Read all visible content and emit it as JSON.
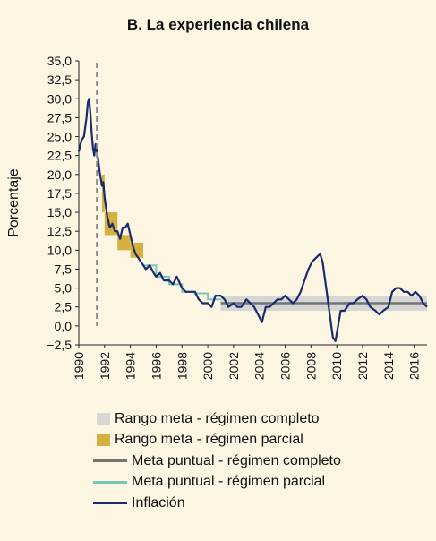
{
  "chart_data": {
    "type": "line",
    "title": "B. La experiencia chilena",
    "ylabel": "Porcentaje",
    "xlabel": "",
    "ylim": [
      -2.5,
      35
    ],
    "xlim": [
      1990,
      2017
    ],
    "y_ticks": [
      "35,0",
      "32,5",
      "30,0",
      "27,5",
      "25,0",
      "22,5",
      "20,0",
      "17,5",
      "15,0",
      "12,5",
      "10,0",
      "7,5",
      "5,0",
      "2,5",
      "0,0",
      "−2,5"
    ],
    "x_ticks": [
      "1990",
      "1992",
      "1994",
      "1996",
      "1998",
      "2000",
      "2002",
      "2004",
      "2006",
      "2008",
      "2010",
      "2012",
      "2014",
      "2016"
    ],
    "marker_line_year": 1991.4,
    "colors": {
      "band_full": "#d6d6d4",
      "band_partial": "#d4b13e",
      "point_full": "#737373",
      "point_partial": "#74c8b8",
      "inflation": "#1a2a6c",
      "marker_line": "#8a8a8a"
    },
    "legend": [
      {
        "label": "Rango meta - régimen completo",
        "kind": "box",
        "color": "#d6d6d4"
      },
      {
        "label": "Rango meta - régimen parcial",
        "kind": "box",
        "color": "#d4b13e"
      },
      {
        "label": "Meta puntual - régimen completo",
        "kind": "line",
        "color": "#737373"
      },
      {
        "label": "Meta puntual - régimen parcial",
        "kind": "line",
        "color": "#74c8b8"
      },
      {
        "label": "Inflación",
        "kind": "line",
        "color": "#1a2a6c"
      }
    ],
    "series": [
      {
        "name": "Rango meta - régimen completo",
        "kind": "band",
        "segments": [
          {
            "x0": 2001.0,
            "x1": 2017.0,
            "low": 2.0,
            "high": 4.0
          }
        ]
      },
      {
        "name": "Rango meta - régimen parcial",
        "kind": "band",
        "segments": [
          {
            "x0": 1991.8,
            "x1": 1992.0,
            "low": 15.0,
            "high": 20.0
          },
          {
            "x0": 1992.0,
            "x1": 1993.0,
            "low": 12.0,
            "high": 15.0
          },
          {
            "x0": 1993.0,
            "x1": 1994.0,
            "low": 10.0,
            "high": 12.0
          },
          {
            "x0": 1994.0,
            "x1": 1995.0,
            "low": 9.0,
            "high": 11.0
          }
        ]
      },
      {
        "name": "Meta puntual - régimen completo",
        "kind": "line",
        "x": [
          2001.0,
          2017.0
        ],
        "y": [
          3.0,
          3.0
        ]
      },
      {
        "name": "Meta puntual - régimen parcial",
        "kind": "step",
        "x": [
          1995.0,
          1996.0,
          1996.0,
          1997.0,
          1997.0,
          1998.0,
          1998.0,
          1999.0,
          1999.0,
          2000.0,
          2000.0,
          2001.0
        ],
        "y": [
          8.0,
          8.0,
          6.5,
          6.5,
          5.5,
          5.5,
          4.5,
          4.5,
          4.3,
          4.3,
          3.5,
          3.5
        ]
      },
      {
        "name": "Inflación",
        "kind": "line",
        "x": [
          1990.0,
          1990.2,
          1990.4,
          1990.6,
          1990.7,
          1990.8,
          1990.9,
          1991.0,
          1991.1,
          1991.2,
          1991.3,
          1991.4,
          1991.5,
          1991.6,
          1991.7,
          1991.8,
          1991.9,
          1992.0,
          1992.2,
          1992.4,
          1992.6,
          1992.8,
          1993.0,
          1993.2,
          1993.4,
          1993.6,
          1993.8,
          1994.0,
          1994.2,
          1994.4,
          1994.6,
          1994.8,
          1995.0,
          1995.2,
          1995.5,
          1995.8,
          1996.0,
          1996.3,
          1996.6,
          1997.0,
          1997.3,
          1997.6,
          1998.0,
          1998.3,
          1998.6,
          1999.0,
          1999.3,
          1999.6,
          2000.0,
          2000.3,
          2000.6,
          2001.0,
          2001.3,
          2001.6,
          2002.0,
          2002.3,
          2002.6,
          2003.0,
          2003.3,
          2003.6,
          2003.9,
          2004.2,
          2004.5,
          2004.8,
          2005.1,
          2005.4,
          2005.7,
          2006.0,
          2006.3,
          2006.6,
          2006.9,
          2007.2,
          2007.5,
          2007.8,
          2008.1,
          2008.4,
          2008.7,
          2008.9,
          2009.1,
          2009.3,
          2009.5,
          2009.7,
          2009.9,
          2010.1,
          2010.3,
          2010.6,
          2011.0,
          2011.3,
          2011.6,
          2012.0,
          2012.3,
          2012.6,
          2013.0,
          2013.3,
          2013.6,
          2014.0,
          2014.3,
          2014.6,
          2014.9,
          2015.2,
          2015.5,
          2015.8,
          2016.1,
          2016.4,
          2016.7,
          2017.0
        ],
        "y": [
          23.0,
          24.5,
          25.0,
          27.5,
          29.5,
          30.0,
          28.0,
          25.5,
          23.5,
          22.5,
          24.0,
          23.0,
          22.0,
          20.5,
          19.5,
          18.5,
          19.0,
          17.0,
          14.5,
          13.0,
          13.5,
          12.5,
          12.5,
          11.5,
          13.0,
          13.0,
          13.5,
          12.0,
          10.5,
          9.5,
          9.0,
          8.5,
          8.0,
          7.5,
          8.0,
          7.0,
          6.5,
          7.0,
          6.0,
          6.0,
          5.5,
          6.5,
          5.0,
          4.5,
          4.5,
          4.5,
          3.5,
          3.0,
          3.0,
          2.5,
          4.0,
          4.0,
          3.5,
          2.5,
          3.0,
          2.5,
          2.5,
          3.5,
          3.0,
          2.5,
          1.5,
          0.5,
          2.5,
          2.5,
          3.0,
          3.5,
          3.5,
          4.0,
          3.5,
          3.0,
          3.5,
          4.5,
          6.0,
          7.5,
          8.5,
          9.0,
          9.5,
          8.5,
          6.0,
          3.5,
          1.0,
          -1.5,
          -2.0,
          0.0,
          2.0,
          2.0,
          3.0,
          3.0,
          3.5,
          4.0,
          3.5,
          2.5,
          2.0,
          1.5,
          2.0,
          2.5,
          4.5,
          5.0,
          5.0,
          4.5,
          4.5,
          4.0,
          4.5,
          4.0,
          3.0,
          2.5
        ]
      }
    ]
  }
}
